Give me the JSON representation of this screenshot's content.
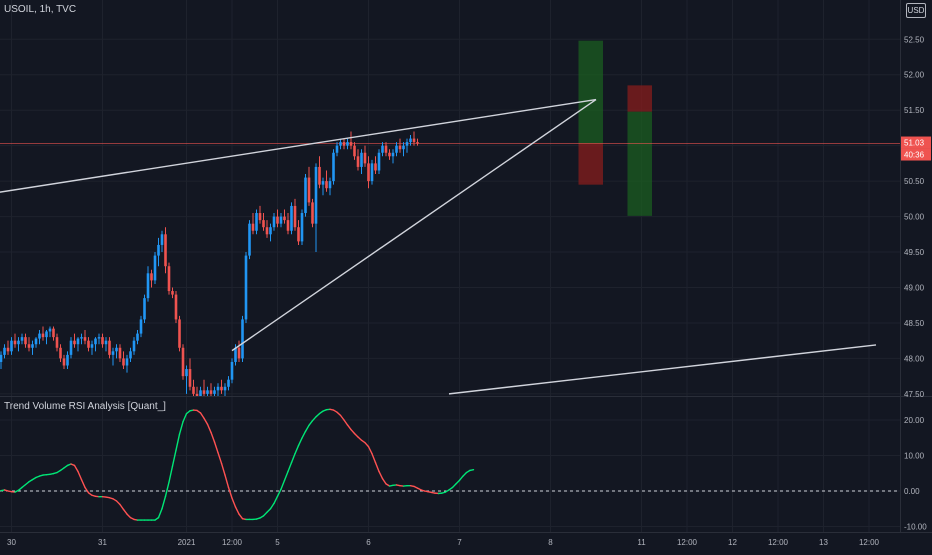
{
  "header": {
    "symbol_line": "USOIL, 1h, TVC"
  },
  "currency": "USD",
  "indicator": {
    "title": "Trend Volume RSI Analysis [Quant_]"
  },
  "price_labels": {
    "last_price": "51.03",
    "countdown": "40:36"
  },
  "colors": {
    "background": "#131722",
    "grid": "#1e222d",
    "bull": "#26a69a",
    "bull_candle": "#2196f3",
    "bear": "#ef5350",
    "trendline": "#d1d4dc",
    "text": "#b2b5be",
    "rsi_up": "#00e676",
    "rsi_down": "#ff5252",
    "profit_zone": "#1b5e20",
    "loss_zone": "#7f1d1d"
  },
  "chart_data": [
    {
      "type": "candlestick",
      "y_axis_ticks": [
        "52.50",
        "52.00",
        "51.50",
        "51.00",
        "50.50",
        "50.00",
        "49.50",
        "49.00",
        "48.50",
        "48.00",
        "47.50"
      ],
      "y_axis_values": [
        52.5,
        52.0,
        51.5,
        51.0,
        50.5,
        50.0,
        49.5,
        49.0,
        48.5,
        48.0,
        47.5
      ],
      "ylim": [
        47.47,
        52.8
      ],
      "x_axis_ticks": [
        {
          "label": "30",
          "i": 3
        },
        {
          "label": "31",
          "i": 29
        },
        {
          "label": "2021",
          "i": 53
        },
        {
          "label": "12:00",
          "i": 66
        },
        {
          "label": "5",
          "i": 79
        },
        {
          "label": "6",
          "i": 105
        },
        {
          "label": "7",
          "i": 131
        },
        {
          "label": "8",
          "i": 157
        },
        {
          "label": "11",
          "i": 183
        },
        {
          "label": "12:00",
          "i": 196
        },
        {
          "label": "12",
          "i": 209
        },
        {
          "label": "12:00",
          "i": 222
        },
        {
          "label": "13",
          "i": 235
        },
        {
          "label": "12:00",
          "i": 248
        }
      ],
      "candles": [
        [
          47.95,
          48.1,
          47.85,
          48.05
        ],
        [
          48.05,
          48.2,
          48.0,
          48.15
        ],
        [
          48.15,
          48.25,
          48.05,
          48.1
        ],
        [
          48.1,
          48.3,
          48.05,
          48.25
        ],
        [
          48.25,
          48.35,
          48.15,
          48.2
        ],
        [
          48.2,
          48.3,
          48.1,
          48.25
        ],
        [
          48.25,
          48.35,
          48.2,
          48.3
        ],
        [
          48.3,
          48.35,
          48.15,
          48.2
        ],
        [
          48.2,
          48.3,
          48.1,
          48.15
        ],
        [
          48.15,
          48.25,
          48.05,
          48.2
        ],
        [
          48.2,
          48.3,
          48.15,
          48.28
        ],
        [
          48.28,
          48.4,
          48.2,
          48.35
        ],
        [
          48.35,
          48.45,
          48.25,
          48.3
        ],
        [
          48.3,
          48.4,
          48.2,
          48.38
        ],
        [
          48.38,
          48.45,
          48.3,
          48.42
        ],
        [
          48.42,
          48.45,
          48.25,
          48.3
        ],
        [
          48.3,
          48.35,
          48.1,
          48.15
        ],
        [
          48.15,
          48.2,
          47.95,
          48.0
        ],
        [
          48.0,
          48.05,
          47.85,
          47.9
        ],
        [
          47.9,
          48.1,
          47.85,
          48.05
        ],
        [
          48.05,
          48.3,
          48.0,
          48.25
        ],
        [
          48.25,
          48.35,
          48.15,
          48.2
        ],
        [
          48.2,
          48.3,
          48.1,
          48.28
        ],
        [
          48.28,
          48.35,
          48.2,
          48.3
        ],
        [
          48.3,
          48.4,
          48.2,
          48.25
        ],
        [
          48.25,
          48.3,
          48.1,
          48.15
        ],
        [
          48.15,
          48.25,
          48.05,
          48.2
        ],
        [
          48.2,
          48.3,
          48.1,
          48.28
        ],
        [
          48.28,
          48.35,
          48.2,
          48.3
        ],
        [
          48.3,
          48.35,
          48.15,
          48.2
        ],
        [
          48.2,
          48.3,
          48.1,
          48.25
        ],
        [
          48.25,
          48.3,
          48.0,
          48.05
        ],
        [
          48.05,
          48.15,
          47.9,
          48.1
        ],
        [
          48.1,
          48.2,
          48.0,
          48.15
        ],
        [
          48.15,
          48.2,
          47.95,
          48.0
        ],
        [
          48.0,
          48.1,
          47.85,
          47.9
        ],
        [
          47.9,
          48.05,
          47.8,
          48.0
        ],
        [
          48.0,
          48.15,
          47.95,
          48.1
        ],
        [
          48.1,
          48.3,
          48.05,
          48.25
        ],
        [
          48.25,
          48.4,
          48.2,
          48.35
        ],
        [
          48.35,
          48.6,
          48.3,
          48.55
        ],
        [
          48.55,
          48.9,
          48.5,
          48.85
        ],
        [
          48.85,
          49.3,
          48.8,
          49.2
        ],
        [
          49.2,
          49.25,
          49.0,
          49.1
        ],
        [
          49.1,
          49.5,
          49.05,
          49.45
        ],
        [
          49.45,
          49.7,
          49.3,
          49.6
        ],
        [
          49.6,
          49.8,
          49.5,
          49.75
        ],
        [
          49.75,
          49.85,
          49.2,
          49.3
        ],
        [
          49.3,
          49.35,
          48.9,
          48.95
        ],
        [
          48.95,
          49.0,
          48.85,
          48.9
        ],
        [
          48.9,
          48.95,
          48.5,
          48.55
        ],
        [
          48.55,
          48.6,
          48.1,
          48.15
        ],
        [
          48.15,
          48.2,
          47.7,
          47.75
        ],
        [
          47.75,
          47.9,
          47.5,
          47.85
        ],
        [
          47.85,
          48.0,
          47.55,
          47.6
        ],
        [
          47.6,
          47.7,
          47.4,
          47.5
        ],
        [
          47.5,
          47.6,
          47.35,
          47.45
        ],
        [
          47.45,
          47.6,
          47.3,
          47.55
        ],
        [
          47.55,
          47.7,
          47.45,
          47.5
        ],
        [
          47.5,
          47.6,
          47.4,
          47.55
        ],
        [
          47.55,
          47.65,
          47.45,
          47.5
        ],
        [
          47.5,
          47.6,
          47.4,
          47.55
        ],
        [
          47.55,
          47.65,
          47.45,
          47.6
        ],
        [
          47.6,
          47.7,
          47.5,
          47.55
        ],
        [
          47.55,
          47.65,
          47.45,
          47.6
        ],
        [
          47.6,
          47.75,
          47.55,
          47.7
        ],
        [
          47.7,
          48.0,
          47.65,
          47.95
        ],
        [
          47.95,
          48.2,
          47.9,
          48.15
        ],
        [
          48.15,
          48.25,
          47.95,
          48.0
        ],
        [
          48.0,
          48.6,
          47.95,
          48.55
        ],
        [
          48.55,
          49.5,
          48.5,
          49.45
        ],
        [
          49.45,
          49.95,
          49.4,
          49.9
        ],
        [
          49.9,
          50.05,
          49.75,
          49.8
        ],
        [
          49.8,
          50.1,
          49.75,
          50.05
        ],
        [
          50.05,
          50.15,
          49.9,
          49.95
        ],
        [
          49.95,
          50.05,
          49.8,
          49.85
        ],
        [
          49.85,
          49.95,
          49.7,
          49.75
        ],
        [
          49.75,
          49.9,
          49.65,
          49.85
        ],
        [
          49.85,
          50.05,
          49.8,
          50.0
        ],
        [
          50.0,
          50.1,
          49.85,
          49.9
        ],
        [
          49.9,
          50.05,
          49.85,
          50.0
        ],
        [
          50.0,
          50.1,
          49.9,
          49.95
        ],
        [
          49.95,
          50.05,
          49.75,
          49.8
        ],
        [
          49.8,
          50.2,
          49.75,
          50.15
        ],
        [
          50.15,
          50.25,
          49.8,
          49.85
        ],
        [
          49.85,
          49.95,
          49.6,
          49.65
        ],
        [
          49.65,
          50.1,
          49.6,
          50.05
        ],
        [
          50.05,
          50.6,
          50.0,
          50.55
        ],
        [
          50.55,
          50.7,
          50.15,
          50.2
        ],
        [
          50.2,
          50.25,
          49.85,
          49.9
        ],
        [
          49.9,
          50.75,
          49.5,
          50.7
        ],
        [
          50.7,
          50.85,
          50.4,
          50.45
        ],
        [
          50.45,
          50.55,
          50.3,
          50.5
        ],
        [
          50.5,
          50.65,
          50.35,
          50.4
        ],
        [
          50.4,
          50.55,
          50.3,
          50.5
        ],
        [
          50.5,
          50.95,
          50.45,
          50.9
        ],
        [
          50.9,
          51.05,
          50.85,
          51.0
        ],
        [
          51.0,
          51.1,
          50.95,
          51.05
        ],
        [
          51.05,
          51.1,
          50.95,
          51.0
        ],
        [
          51.0,
          51.1,
          50.95,
          51.05
        ],
        [
          51.05,
          51.2,
          50.95,
          51.0
        ],
        [
          51.0,
          51.05,
          50.8,
          50.85
        ],
        [
          50.85,
          50.95,
          50.65,
          50.7
        ],
        [
          50.7,
          50.95,
          50.6,
          50.9
        ],
        [
          50.9,
          51.0,
          50.7,
          50.75
        ],
        [
          50.75,
          50.85,
          50.4,
          50.5
        ],
        [
          50.5,
          50.8,
          50.45,
          50.75
        ],
        [
          50.75,
          50.85,
          50.6,
          50.65
        ],
        [
          50.65,
          50.95,
          50.6,
          50.9
        ],
        [
          50.9,
          51.05,
          50.85,
          51.0
        ],
        [
          51.0,
          51.05,
          50.85,
          50.9
        ],
        [
          50.9,
          50.95,
          50.8,
          50.85
        ],
        [
          50.85,
          50.95,
          50.75,
          50.9
        ],
        [
          50.9,
          51.05,
          50.85,
          51.0
        ],
        [
          51.0,
          51.1,
          50.9,
          50.95
        ],
        [
          50.95,
          51.05,
          50.85,
          51.0
        ],
        [
          51.0,
          51.1,
          50.9,
          51.05
        ],
        [
          51.05,
          51.15,
          51.0,
          51.1
        ],
        [
          51.1,
          51.2,
          51.0,
          51.05
        ],
        [
          51.05,
          51.1,
          51.0,
          51.03
        ]
      ],
      "trendlines": [
        {
          "x1": -10,
          "y1": 50.27,
          "x2": 170,
          "y2": 51.65
        },
        {
          "x1": 66,
          "y1": 48.11,
          "x2": 170,
          "y2": 51.65
        },
        {
          "x1": 128,
          "y1": 47.5,
          "x2": 250,
          "y2": 48.19
        }
      ],
      "last_price_line": 51.03,
      "positions": [
        {
          "i_start": 165,
          "i_end": 172,
          "entry": 51.03,
          "target": 52.48,
          "stop": 50.45,
          "direction": "long"
        },
        {
          "i_start": 179,
          "i_end": 186,
          "entry": 51.48,
          "target": 50.01,
          "stop": 51.85,
          "direction": "short"
        }
      ]
    },
    {
      "type": "line",
      "title": "Trend Volume RSI Analysis [Quant_]",
      "y_axis_ticks": [
        "20.00",
        "10.00",
        "0.00",
        "-10.00"
      ],
      "y_axis_values": [
        20,
        10,
        0,
        -10
      ],
      "ylim": [
        -11,
        25.3
      ],
      "zero_line": 0,
      "values": [
        0.1,
        0.3,
        0.0,
        -0.2,
        -0.3,
        0.2,
        1.0,
        1.8,
        2.6,
        3.2,
        3.8,
        4.2,
        4.5,
        4.6,
        4.7,
        4.9,
        5.2,
        5.8,
        6.5,
        7.2,
        7.6,
        7.2,
        5.5,
        3.2,
        1.0,
        -0.5,
        -1.2,
        -1.5,
        -1.6,
        -1.6,
        -1.7,
        -1.9,
        -2.2,
        -2.8,
        -3.8,
        -5.2,
        -6.5,
        -7.5,
        -8.0,
        -8.2,
        -8.2,
        -8.2,
        -8.2,
        -8.2,
        -8.2,
        -7.5,
        -5.0,
        -1.5,
        2.5,
        7.0,
        11.5,
        16.0,
        19.5,
        21.8,
        22.6,
        22.8,
        22.7,
        22.0,
        20.5,
        18.8,
        16.5,
        13.8,
        10.8,
        7.8,
        4.5,
        1.0,
        -2.0,
        -4.5,
        -6.5,
        -7.8,
        -8.0,
        -8.0,
        -8.0,
        -7.9,
        -7.6,
        -7.0,
        -6.0,
        -5.0,
        -3.5,
        -1.5,
        0.5,
        3.0,
        5.5,
        8.0,
        10.5,
        12.8,
        14.9,
        16.8,
        18.5,
        19.8,
        20.9,
        21.8,
        22.5,
        22.9,
        23.0,
        22.8,
        22.2,
        21.3,
        20.0,
        18.6,
        17.3,
        16.2,
        15.2,
        14.3,
        13.6,
        12.5,
        10.5,
        8.0,
        5.5,
        3.5,
        2.0,
        1.4,
        1.6,
        1.7,
        1.5,
        1.4,
        1.5,
        1.5,
        1.3,
        0.8,
        0.3,
        0.0,
        -0.2,
        -0.4,
        -0.6,
        -0.7,
        -0.6,
        -0.3,
        0.3,
        1.0,
        2.0,
        3.0,
        4.2,
        5.2,
        5.8,
        6.0
      ]
    }
  ]
}
